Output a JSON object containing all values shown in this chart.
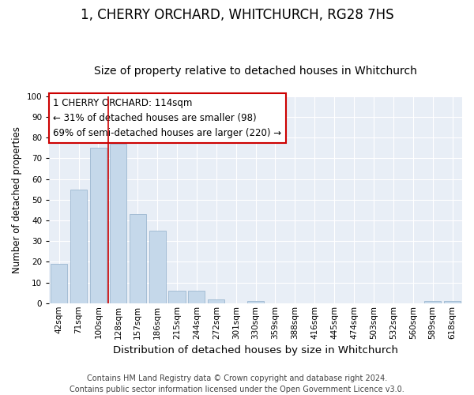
{
  "title": "1, CHERRY ORCHARD, WHITCHURCH, RG28 7HS",
  "subtitle": "Size of property relative to detached houses in Whitchurch",
  "xlabel": "Distribution of detached houses by size in Whitchurch",
  "ylabel": "Number of detached properties",
  "categories": [
    "42sqm",
    "71sqm",
    "100sqm",
    "128sqm",
    "157sqm",
    "186sqm",
    "215sqm",
    "244sqm",
    "272sqm",
    "301sqm",
    "330sqm",
    "359sqm",
    "388sqm",
    "416sqm",
    "445sqm",
    "474sqm",
    "503sqm",
    "532sqm",
    "560sqm",
    "589sqm",
    "618sqm"
  ],
  "values": [
    19,
    55,
    75,
    77,
    43,
    35,
    6,
    6,
    2,
    0,
    1,
    0,
    0,
    0,
    0,
    0,
    0,
    0,
    0,
    1,
    1
  ],
  "bar_color": "#c5d8ea",
  "bar_edge_color": "#9cb8d0",
  "vline_color": "#cc0000",
  "annotation_text": "1 CHERRY ORCHARD: 114sqm\n← 31% of detached houses are smaller (98)\n69% of semi-detached houses are larger (220) →",
  "annotation_box_color": "white",
  "annotation_box_edge_color": "#cc0000",
  "ylim": [
    0,
    100
  ],
  "yticks": [
    0,
    10,
    20,
    30,
    40,
    50,
    60,
    70,
    80,
    90,
    100
  ],
  "background_color": "#e8eef6",
  "footer_text": "Contains HM Land Registry data © Crown copyright and database right 2024.\nContains public sector information licensed under the Open Government Licence v3.0.",
  "title_fontsize": 12,
  "subtitle_fontsize": 10,
  "xlabel_fontsize": 9.5,
  "ylabel_fontsize": 8.5,
  "tick_fontsize": 7.5,
  "annotation_fontsize": 8.5,
  "footer_fontsize": 7
}
